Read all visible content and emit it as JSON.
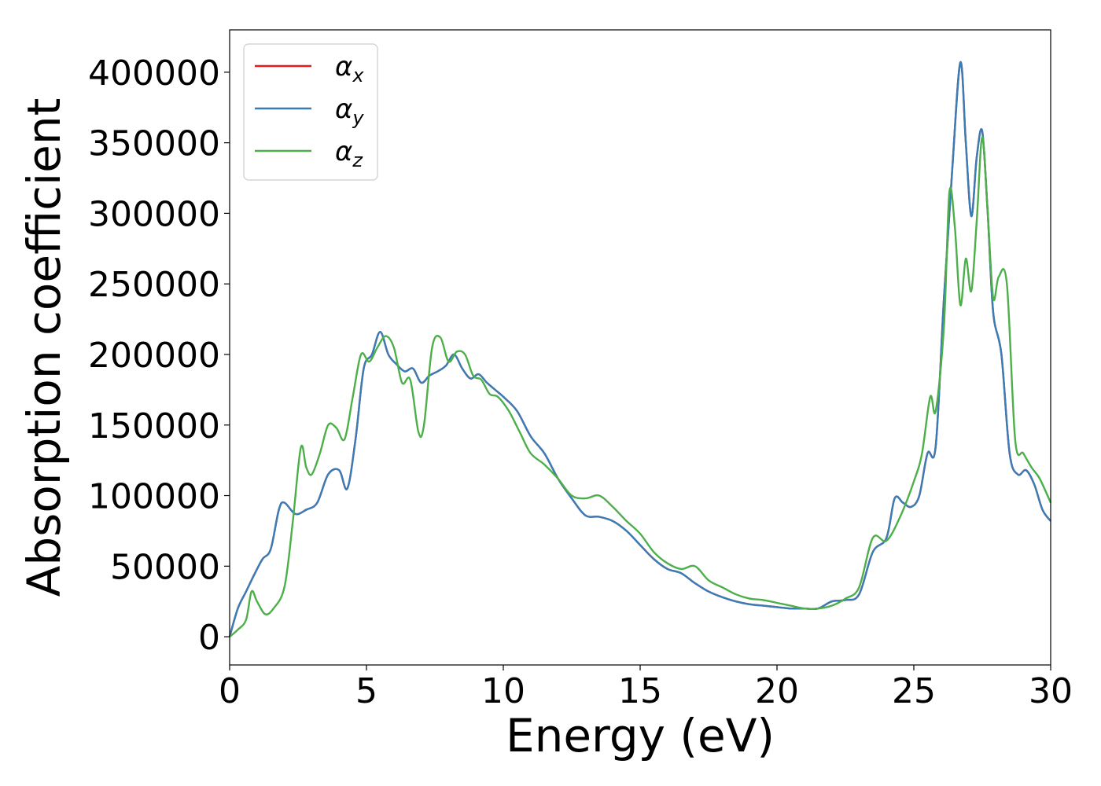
{
  "chart_data": {
    "type": "line",
    "xlabel": "Energy (eV)",
    "ylabel": "Absorption coefficient",
    "xlim": [
      0,
      30
    ],
    "ylim": [
      -20000,
      430000
    ],
    "xticks": [
      "0",
      "5",
      "10",
      "15",
      "20",
      "25",
      "30"
    ],
    "yticks": [
      "0",
      "50000",
      "100000",
      "150000",
      "200000",
      "250000",
      "300000",
      "350000",
      "400000"
    ],
    "grid": false,
    "legend_position": "top-left",
    "series": [
      {
        "name": "α",
        "subscript": "x",
        "color": "#e41a1c",
        "x": [
          0,
          0.3,
          0.6,
          0.9,
          1.2,
          1.5,
          1.8,
          2.0,
          2.4,
          2.8,
          3.2,
          3.6,
          4.0,
          4.3,
          4.6,
          4.9,
          5.2,
          5.5,
          5.8,
          6.1,
          6.4,
          6.7,
          7.0,
          7.3,
          7.6,
          7.9,
          8.2,
          8.5,
          8.8,
          9.1,
          9.4,
          9.7,
          10.0,
          10.5,
          11.0,
          11.5,
          12.0,
          12.5,
          13.0,
          13.5,
          14.0,
          14.5,
          15.0,
          15.5,
          16.0,
          16.5,
          17.0,
          17.5,
          18.0,
          18.5,
          19.0,
          19.5,
          20.0,
          20.5,
          21.0,
          21.5,
          22.0,
          22.5,
          23.0,
          23.5,
          24.0,
          24.3,
          24.6,
          24.9,
          25.2,
          25.5,
          25.8,
          26.1,
          26.4,
          26.7,
          26.9,
          27.1,
          27.3,
          27.5,
          27.7,
          27.9,
          28.2,
          28.5,
          28.8,
          29.1,
          29.4,
          29.7,
          30.0
        ],
        "y": [
          0,
          20000,
          32000,
          44000,
          55000,
          62000,
          90000,
          95000,
          87000,
          90000,
          95000,
          115000,
          118000,
          105000,
          140000,
          190000,
          200000,
          216000,
          200000,
          193000,
          188000,
          190000,
          180000,
          185000,
          188000,
          192000,
          200000,
          190000,
          183000,
          186000,
          180000,
          175000,
          170000,
          160000,
          142000,
          130000,
          112000,
          98000,
          86000,
          85000,
          82000,
          75000,
          65000,
          55000,
          48000,
          45000,
          38000,
          32000,
          28000,
          25000,
          23000,
          22000,
          21000,
          20000,
          20000,
          20000,
          25000,
          26000,
          30000,
          60000,
          70000,
          98000,
          95000,
          92000,
          100000,
          130000,
          135000,
          240000,
          330000,
          407000,
          350000,
          298000,
          340000,
          358000,
          300000,
          230000,
          200000,
          130000,
          115000,
          118000,
          108000,
          90000,
          82000
        ]
      },
      {
        "name": "α",
        "subscript": "y",
        "color": "#377eb8",
        "x": [
          0,
          0.3,
          0.6,
          0.9,
          1.2,
          1.5,
          1.8,
          2.0,
          2.4,
          2.8,
          3.2,
          3.6,
          4.0,
          4.3,
          4.6,
          4.9,
          5.2,
          5.5,
          5.8,
          6.1,
          6.4,
          6.7,
          7.0,
          7.3,
          7.6,
          7.9,
          8.2,
          8.5,
          8.8,
          9.1,
          9.4,
          9.7,
          10.0,
          10.5,
          11.0,
          11.5,
          12.0,
          12.5,
          13.0,
          13.5,
          14.0,
          14.5,
          15.0,
          15.5,
          16.0,
          16.5,
          17.0,
          17.5,
          18.0,
          18.5,
          19.0,
          19.5,
          20.0,
          20.5,
          21.0,
          21.5,
          22.0,
          22.5,
          23.0,
          23.5,
          24.0,
          24.3,
          24.6,
          24.9,
          25.2,
          25.5,
          25.8,
          26.1,
          26.4,
          26.7,
          26.9,
          27.1,
          27.3,
          27.5,
          27.7,
          27.9,
          28.2,
          28.5,
          28.8,
          29.1,
          29.4,
          29.7,
          30.0
        ],
        "y": [
          0,
          20000,
          32000,
          44000,
          55000,
          62000,
          90000,
          95000,
          87000,
          90000,
          95000,
          115000,
          118000,
          105000,
          140000,
          190000,
          200000,
          216000,
          200000,
          193000,
          188000,
          190000,
          180000,
          185000,
          188000,
          192000,
          200000,
          190000,
          183000,
          186000,
          180000,
          175000,
          170000,
          160000,
          142000,
          130000,
          112000,
          98000,
          86000,
          85000,
          82000,
          75000,
          65000,
          55000,
          48000,
          45000,
          38000,
          32000,
          28000,
          25000,
          23000,
          22000,
          21000,
          20000,
          20000,
          20000,
          25000,
          26000,
          30000,
          60000,
          70000,
          98000,
          95000,
          92000,
          100000,
          130000,
          135000,
          240000,
          330000,
          407000,
          350000,
          298000,
          340000,
          358000,
          300000,
          230000,
          200000,
          130000,
          115000,
          118000,
          108000,
          90000,
          82000
        ]
      },
      {
        "name": "α",
        "subscript": "z",
        "color": "#4daf4a",
        "x": [
          0,
          0.3,
          0.6,
          0.8,
          1.0,
          1.3,
          1.6,
          2.0,
          2.3,
          2.6,
          2.8,
          3.0,
          3.3,
          3.6,
          3.9,
          4.2,
          4.5,
          4.8,
          5.1,
          5.4,
          5.7,
          6.0,
          6.3,
          6.6,
          6.9,
          7.1,
          7.4,
          7.7,
          8.0,
          8.3,
          8.6,
          8.9,
          9.2,
          9.5,
          9.8,
          10.2,
          10.6,
          11.0,
          11.5,
          12.0,
          12.5,
          13.0,
          13.5,
          14.0,
          14.5,
          15.0,
          15.5,
          16.0,
          16.5,
          17.0,
          17.5,
          18.0,
          18.5,
          19.0,
          19.5,
          20.0,
          20.5,
          21.0,
          21.5,
          22.0,
          22.5,
          23.0,
          23.5,
          24.0,
          24.5,
          25.0,
          25.3,
          25.6,
          25.8,
          26.1,
          26.3,
          26.5,
          26.7,
          26.9,
          27.1,
          27.3,
          27.5,
          27.7,
          27.9,
          28.1,
          28.4,
          28.7,
          29.0,
          29.3,
          29.6,
          30.0
        ],
        "y": [
          0,
          5000,
          12000,
          32000,
          25000,
          16000,
          20000,
          35000,
          80000,
          134000,
          120000,
          115000,
          130000,
          150000,
          148000,
          140000,
          170000,
          200000,
          195000,
          205000,
          213000,
          205000,
          180000,
          182000,
          145000,
          150000,
          205000,
          212000,
          195000,
          202000,
          200000,
          185000,
          182000,
          172000,
          170000,
          160000,
          145000,
          130000,
          122000,
          112000,
          100000,
          98000,
          100000,
          92000,
          82000,
          73000,
          60000,
          52000,
          48000,
          50000,
          40000,
          35000,
          30000,
          27000,
          26000,
          24000,
          22000,
          20000,
          20000,
          22000,
          27000,
          35000,
          70000,
          68000,
          85000,
          110000,
          130000,
          170000,
          160000,
          220000,
          315000,
          290000,
          235000,
          268000,
          245000,
          295000,
          354000,
          300000,
          240000,
          255000,
          250000,
          140000,
          130000,
          120000,
          112000,
          95000
        ]
      }
    ]
  }
}
